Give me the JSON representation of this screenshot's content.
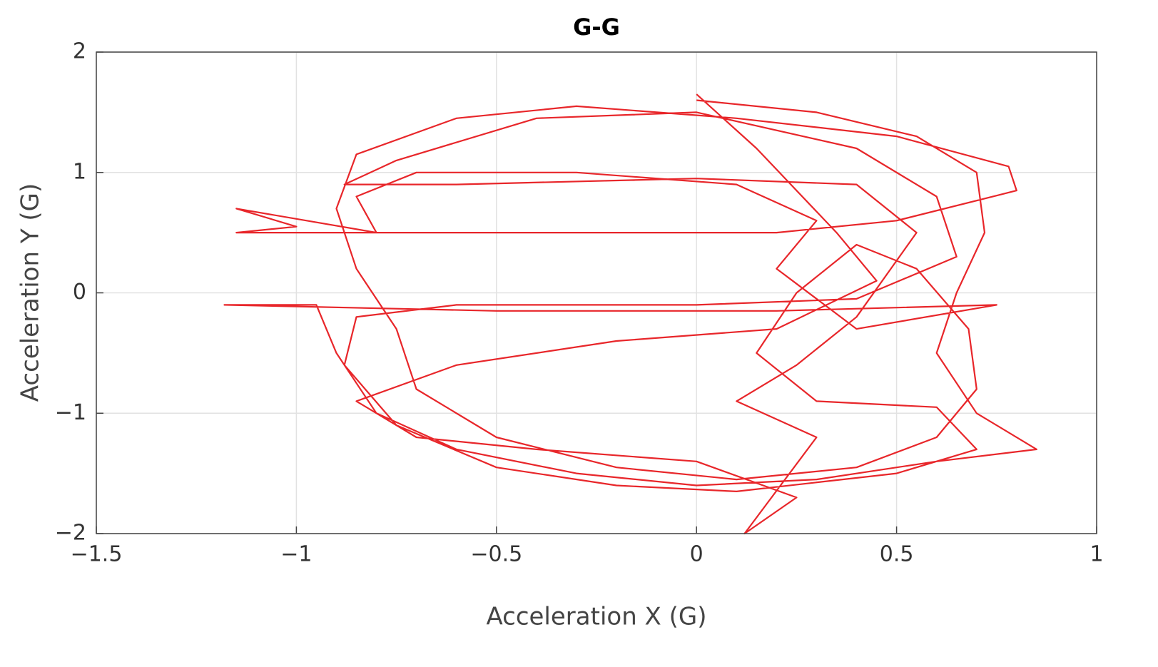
{
  "chart_data": {
    "type": "line",
    "title": "G-G",
    "xlabel": "Acceleration X (G)",
    "ylabel": "Acceleration Y (G)",
    "color": "#e8262a",
    "grid": true,
    "xlim": [
      -1.5,
      1
    ],
    "ylim": [
      -2,
      2
    ],
    "xticks": [
      {
        "value": -1.5,
        "label": "−1.5"
      },
      {
        "value": -1,
        "label": "−1"
      },
      {
        "value": -0.5,
        "label": "−0.5"
      },
      0,
      0.5,
      1
    ],
    "yticks": [
      {
        "value": -2,
        "label": "−2"
      },
      {
        "value": -1,
        "label": "−1"
      },
      0,
      1,
      2
    ],
    "x": [
      0,
      0.3,
      0.55,
      0.7,
      0.72,
      0.65,
      0.6,
      0.7,
      0.85,
      0.6,
      0.3,
      0,
      -0.3,
      -0.6,
      -0.8,
      -0.9,
      -0.95,
      -1.18,
      -0.5,
      0.2,
      0.75,
      0.4,
      0.2,
      0.3,
      0.1,
      -0.3,
      -0.7,
      -0.85,
      -0.8,
      -1.15,
      -1.0,
      -1.15,
      -0.5,
      0.2,
      0.5,
      0.8,
      0.78,
      0.5,
      0.1,
      -0.3,
      -0.6,
      -0.85,
      -0.9,
      -0.85,
      -0.75,
      -0.7,
      -0.5,
      -0.2,
      0.1,
      0.4,
      0.6,
      0.7,
      0.68,
      0.55,
      0.4,
      0.25,
      0.15,
      0.3,
      0.6,
      0.7,
      0.5,
      0.1,
      -0.2,
      -0.5,
      -0.75,
      -0.88,
      -0.85,
      -0.6,
      0,
      0.4,
      0.65,
      0.6,
      0.4,
      0,
      -0.4,
      -0.75,
      -0.88,
      -0.6,
      0,
      0.4,
      0.55,
      0.4,
      0.25,
      0.1,
      0.3,
      0.12,
      0.25,
      0,
      -0.4,
      -0.7,
      -0.85,
      -0.6,
      -0.2,
      0.2,
      0.45,
      0.35,
      0.15,
      0
    ],
    "values": [
      1.6,
      1.5,
      1.3,
      1.0,
      0.5,
      0,
      -0.5,
      -1.0,
      -1.3,
      -1.4,
      -1.55,
      -1.6,
      -1.5,
      -1.3,
      -1.0,
      -0.5,
      -0.1,
      -0.1,
      -0.15,
      -0.15,
      -0.1,
      -0.3,
      0.2,
      0.6,
      0.9,
      1.0,
      1.0,
      0.8,
      0.5,
      0.7,
      0.55,
      0.5,
      0.5,
      0.5,
      0.6,
      0.85,
      1.05,
      1.3,
      1.45,
      1.55,
      1.45,
      1.15,
      0.7,
      0.2,
      -0.3,
      -0.8,
      -1.2,
      -1.45,
      -1.55,
      -1.45,
      -1.2,
      -0.8,
      -0.3,
      0.2,
      0.4,
      0,
      -0.5,
      -0.9,
      -0.95,
      -1.3,
      -1.5,
      -1.65,
      -1.6,
      -1.45,
      -1.1,
      -0.6,
      -0.2,
      -0.1,
      -0.1,
      -0.05,
      0.3,
      0.8,
      1.2,
      1.5,
      1.45,
      1.1,
      0.9,
      0.9,
      0.95,
      0.9,
      0.5,
      -0.2,
      -0.6,
      -0.9,
      -1.2,
      -2.0,
      -1.7,
      -1.4,
      -1.3,
      -1.2,
      -0.9,
      -0.6,
      -0.4,
      -0.3,
      0.1,
      0.5,
      1.2,
      1.65
    ]
  }
}
